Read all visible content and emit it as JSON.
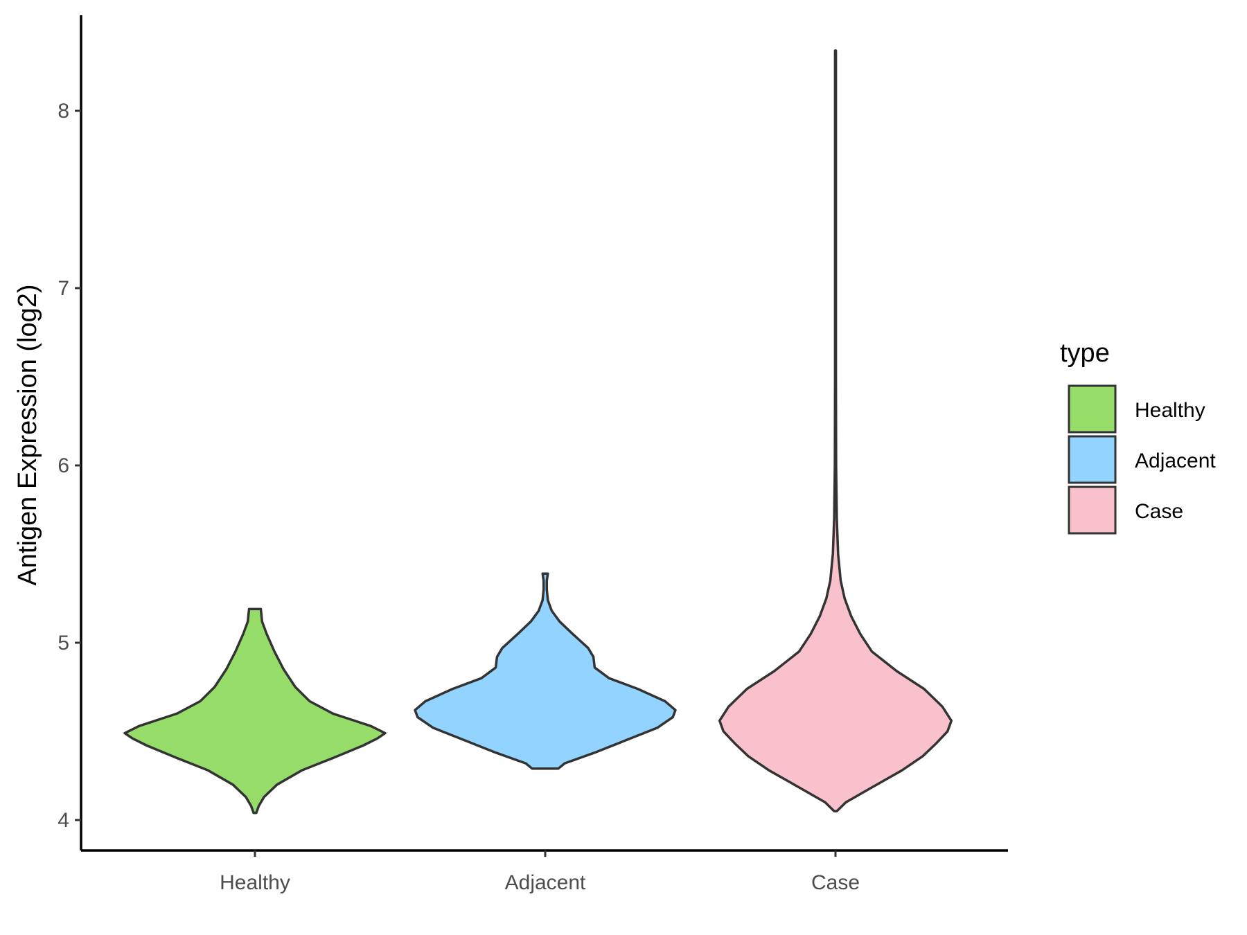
{
  "chart_data": {
    "type": "violin",
    "title": "",
    "xlabel": "",
    "ylabel": "Antigen Expression (log2)",
    "ylim": [
      3.8,
      8.55
    ],
    "yticks": [
      4,
      5,
      6,
      7,
      8
    ],
    "categories": [
      "Healthy",
      "Adjacent",
      "Case"
    ],
    "legend": {
      "title": "type",
      "position": "right",
      "entries": [
        "Healthy",
        "Adjacent",
        "Case"
      ]
    },
    "colors": {
      "Healthy": "#95dc69",
      "Adjacent": "#92d4ff",
      "Case": "#f8c1cc",
      "outline": "#333333"
    },
    "series": [
      {
        "category": "Healthy",
        "range": [
          4.04,
          5.19
        ],
        "density": [
          [
            4.04,
            0.01
          ],
          [
            4.08,
            0.03
          ],
          [
            4.13,
            0.07
          ],
          [
            4.2,
            0.17
          ],
          [
            4.28,
            0.36
          ],
          [
            4.35,
            0.6
          ],
          [
            4.42,
            0.83
          ],
          [
            4.46,
            0.94
          ],
          [
            4.49,
            1.0
          ],
          [
            4.53,
            0.89
          ],
          [
            4.6,
            0.6
          ],
          [
            4.67,
            0.42
          ],
          [
            4.75,
            0.31
          ],
          [
            4.85,
            0.22
          ],
          [
            4.95,
            0.15
          ],
          [
            5.05,
            0.09
          ],
          [
            5.12,
            0.055
          ],
          [
            5.19,
            0.045
          ]
        ]
      },
      {
        "category": "Adjacent",
        "range": [
          4.29,
          5.39
        ],
        "density": [
          [
            4.29,
            0.1
          ],
          [
            4.32,
            0.15
          ],
          [
            4.38,
            0.38
          ],
          [
            4.45,
            0.62
          ],
          [
            4.52,
            0.86
          ],
          [
            4.58,
            0.98
          ],
          [
            4.62,
            1.0
          ],
          [
            4.67,
            0.92
          ],
          [
            4.74,
            0.71
          ],
          [
            4.8,
            0.49
          ],
          [
            4.86,
            0.38
          ],
          [
            4.92,
            0.37
          ],
          [
            4.97,
            0.33
          ],
          [
            5.05,
            0.21
          ],
          [
            5.12,
            0.11
          ],
          [
            5.18,
            0.05
          ],
          [
            5.24,
            0.02
          ],
          [
            5.3,
            0.012
          ],
          [
            5.35,
            0.012
          ],
          [
            5.39,
            0.02
          ]
        ]
      },
      {
        "category": "Case",
        "range": [
          4.05,
          8.34
        ],
        "density": [
          [
            4.05,
            0.01
          ],
          [
            4.1,
            0.08
          ],
          [
            4.18,
            0.27
          ],
          [
            4.28,
            0.51
          ],
          [
            4.36,
            0.67
          ],
          [
            4.43,
            0.77
          ],
          [
            4.5,
            0.86
          ],
          [
            4.56,
            0.89
          ],
          [
            4.64,
            0.82
          ],
          [
            4.74,
            0.68
          ],
          [
            4.84,
            0.47
          ],
          [
            4.95,
            0.28
          ],
          [
            5.05,
            0.19
          ],
          [
            5.15,
            0.12
          ],
          [
            5.25,
            0.07
          ],
          [
            5.35,
            0.04
          ],
          [
            5.5,
            0.02
          ],
          [
            5.7,
            0.01
          ],
          [
            6.0,
            0.005
          ],
          [
            6.5,
            0.003
          ],
          [
            7.5,
            0.003
          ],
          [
            8.34,
            0.003
          ]
        ]
      }
    ]
  }
}
